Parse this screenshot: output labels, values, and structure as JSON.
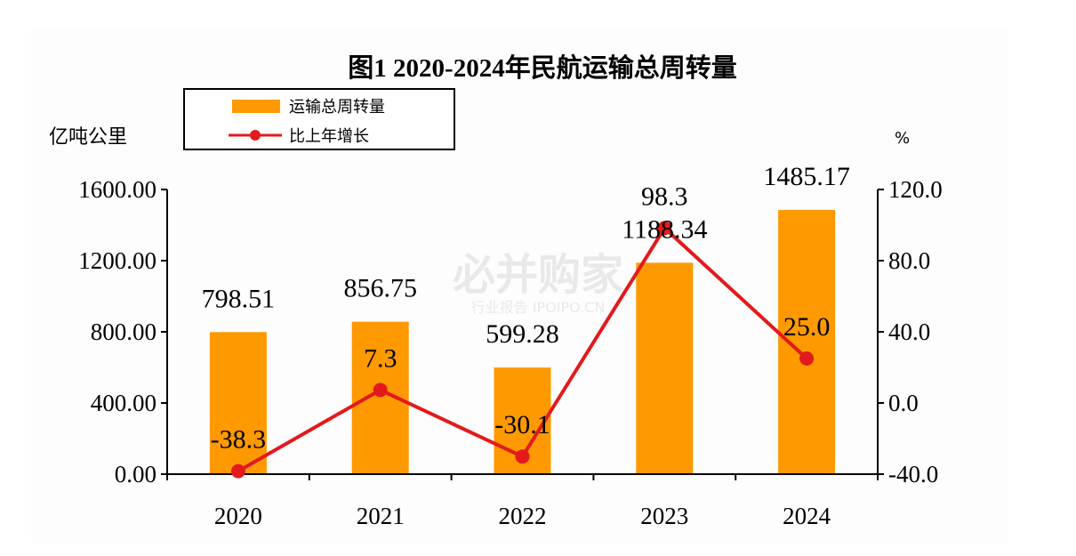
{
  "chart_data": {
    "type": "bar",
    "title": "图1  2020-2024年民航运输总周转量",
    "categories": [
      "2020",
      "2021",
      "2022",
      "2023",
      "2024"
    ],
    "series": [
      {
        "name": "运输总周转量",
        "kind": "bar",
        "axis": "left",
        "values": [
          798.51,
          856.75,
          599.28,
          1188.34,
          1485.17
        ],
        "labels": [
          "798.51",
          "856.75",
          "599.28",
          "1188.34",
          "1485.17"
        ]
      },
      {
        "name": "比上年增长",
        "kind": "line",
        "axis": "right",
        "values": [
          -38.3,
          7.3,
          -30.1,
          98.3,
          25.0
        ],
        "labels": [
          "-38.3",
          "7.3",
          "-30.1",
          "98.3",
          "25.0"
        ]
      }
    ],
    "left_axis": {
      "unit": "亿吨公里",
      "ylim": [
        0,
        1600
      ],
      "ticks": [
        "0.00",
        "400.00",
        "800.00",
        "1200.00",
        "1600.00"
      ]
    },
    "right_axis": {
      "unit": "%",
      "ylim": [
        -40,
        120
      ],
      "ticks": [
        "-40.0",
        "0.0",
        "40.0",
        "80.0",
        "120.0"
      ]
    },
    "legend": {
      "position": "top-left"
    },
    "grid": false
  },
  "colors": {
    "bar": "#FF9900",
    "line": "#E31A1C",
    "axis": "#000000"
  },
  "watermark": {
    "main": "必并购家",
    "sub": "行业报告 IPOIPO.CN"
  }
}
